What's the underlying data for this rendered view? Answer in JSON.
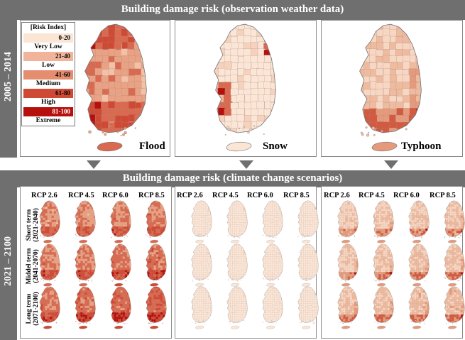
{
  "top_title": "Building damage risk (observation weather data)",
  "bottom_title": "Building damage risk (climate change scenarios)",
  "period_top": "2005 – 2014",
  "period_bottom": "2021 – 2100",
  "legend": {
    "title": "[Risk Index]",
    "classes": [
      {
        "range": "0-20",
        "label": "Very Low",
        "color": "#fbe6d6"
      },
      {
        "range": "21-40",
        "label": "Low",
        "color": "#f1b49a"
      },
      {
        "range": "41-60",
        "label": "Medium",
        "color": "#e48d6f"
      },
      {
        "range": "61-80",
        "label": "High",
        "color": "#cf4a34"
      },
      {
        "range": "81-100",
        "label": "Extreme",
        "color": "#b5100e"
      }
    ]
  },
  "hazards": [
    {
      "name": "Flood",
      "palette": [
        "#f3c1a6",
        "#e9a283",
        "#d96a50",
        "#cf4a34",
        "#b5100e"
      ]
    },
    {
      "name": "Snow",
      "palette": [
        "#fbe6d6",
        "#f6d2bd",
        "#eeb59a",
        "#d96a50",
        "#b5100e"
      ]
    },
    {
      "name": "Typhoon",
      "palette": [
        "#f7d6c2",
        "#efbb9f",
        "#e59b7b",
        "#d25a40",
        "#b5100e"
      ]
    }
  ],
  "scenarios": [
    "RCP 2.6",
    "RCP 4.5",
    "RCP 6.0",
    "RCP 8.5"
  ],
  "terms": [
    {
      "name": "Short term",
      "years": "(2021-2040)"
    },
    {
      "name": "Middel term",
      "years": "(2041-2070)"
    },
    {
      "name": "Long term",
      "years": "(2071-2100)"
    }
  ]
}
